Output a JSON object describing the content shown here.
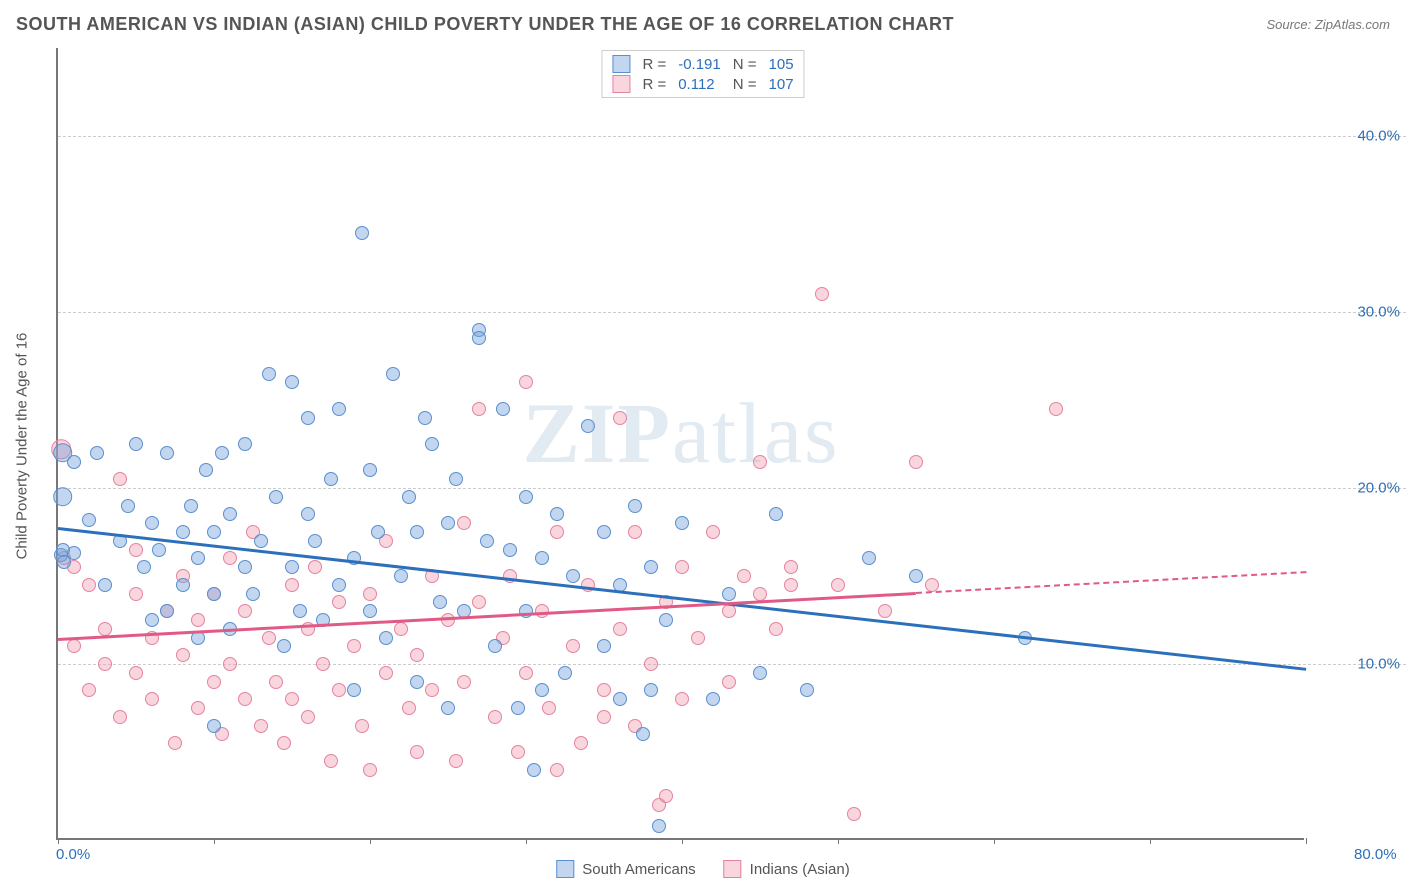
{
  "title": "SOUTH AMERICAN VS INDIAN (ASIAN) CHILD POVERTY UNDER THE AGE OF 16 CORRELATION CHART",
  "source_prefix": "Source: ",
  "source_name": "ZipAtlas.com",
  "watermark_bold": "ZIP",
  "watermark_light": "atlas",
  "yaxis_title": "Child Poverty Under the Age of 16",
  "chart": {
    "type": "scatter",
    "xlim": [
      0,
      80
    ],
    "ylim": [
      0,
      45
    ],
    "x_label_min": "0.0%",
    "x_label_max": "80.0%",
    "x_label_color": "#2c6fbb",
    "x_tick_positions": [
      0,
      10,
      20,
      30,
      40,
      50,
      60,
      70,
      80
    ],
    "y_gridlines": [
      10,
      20,
      30,
      40
    ],
    "y_tick_labels": [
      "10.0%",
      "20.0%",
      "30.0%",
      "40.0%"
    ],
    "y_label_color": "#2c6fbb",
    "grid_color": "#cccccc",
    "axis_color": "#777777",
    "background_color": "#ffffff",
    "marker_radius": 7,
    "marker_radius_big": 12,
    "marker_stroke_width": 1.5,
    "series": [
      {
        "name": "South Americans",
        "fill": "rgba(120,165,220,0.45)",
        "stroke": "#5a8fd0",
        "trend_color": "#2c6fbb",
        "trend_y_at_x0": 17.8,
        "trend_y_at_xmax": 9.8,
        "trend_solid_until_x": 80,
        "R": "-0.191",
        "N": "105",
        "points": [
          [
            0.3,
            22.0,
            1.4
          ],
          [
            0.3,
            19.5,
            1.4
          ],
          [
            0.2,
            16.2,
            1.0
          ],
          [
            0.3,
            16.5,
            1.0
          ],
          [
            1,
            16.3,
            1.0
          ],
          [
            0.4,
            15.8,
            1.0
          ],
          [
            1,
            21.5,
            1.0
          ],
          [
            2,
            18.2,
            1.0
          ],
          [
            2.5,
            22.0,
            1.0
          ],
          [
            3,
            14.5,
            1.0
          ],
          [
            4,
            17.0,
            1.0
          ],
          [
            4.5,
            19.0,
            1.0
          ],
          [
            5,
            22.5,
            1.0
          ],
          [
            5.5,
            15.5,
            1.0
          ],
          [
            6,
            12.5,
            1.0
          ],
          [
            6,
            18.0,
            1.0
          ],
          [
            6.5,
            16.5,
            1.0
          ],
          [
            7,
            22.0,
            1.0
          ],
          [
            7,
            13.0,
            1.0
          ],
          [
            8,
            17.5,
            1.0
          ],
          [
            8,
            14.5,
            1.0
          ],
          [
            8.5,
            19.0,
            1.0
          ],
          [
            9,
            11.5,
            1.0
          ],
          [
            9,
            16.0,
            1.0
          ],
          [
            9.5,
            21.0,
            1.0
          ],
          [
            10,
            14.0,
            1.0
          ],
          [
            10,
            17.5,
            1.0
          ],
          [
            10,
            6.5,
            1.0
          ],
          [
            10.5,
            22.0,
            1.0
          ],
          [
            11,
            12.0,
            1.0
          ],
          [
            11,
            18.5,
            1.0
          ],
          [
            12,
            22.5,
            1.0
          ],
          [
            12,
            15.5,
            1.0
          ],
          [
            12.5,
            14.0,
            1.0
          ],
          [
            13,
            17.0,
            1.0
          ],
          [
            13.5,
            26.5,
            1.0
          ],
          [
            14,
            19.5,
            1.0
          ],
          [
            14.5,
            11.0,
            1.0
          ],
          [
            15,
            15.5,
            1.0
          ],
          [
            15,
            26.0,
            1.0
          ],
          [
            15.5,
            13.0,
            1.0
          ],
          [
            16,
            18.5,
            1.0
          ],
          [
            16,
            24.0,
            1.0
          ],
          [
            16.5,
            17.0,
            1.0
          ],
          [
            17,
            12.5,
            1.0
          ],
          [
            17.5,
            20.5,
            1.0
          ],
          [
            18,
            14.5,
            1.0
          ],
          [
            18,
            24.5,
            1.0
          ],
          [
            19,
            8.5,
            1.0
          ],
          [
            19,
            16.0,
            1.0
          ],
          [
            19.5,
            34.5,
            1.0
          ],
          [
            20,
            13.0,
            1.0
          ],
          [
            20,
            21.0,
            1.0
          ],
          [
            20.5,
            17.5,
            1.0
          ],
          [
            21,
            11.5,
            1.0
          ],
          [
            21.5,
            26.5,
            1.0
          ],
          [
            22,
            15.0,
            1.0
          ],
          [
            22.5,
            19.5,
            1.0
          ],
          [
            23,
            9.0,
            1.0
          ],
          [
            23,
            17.5,
            1.0
          ],
          [
            23.5,
            24.0,
            1.0
          ],
          [
            24,
            22.5,
            1.0
          ],
          [
            24.5,
            13.5,
            1.0
          ],
          [
            25,
            18.0,
            1.0
          ],
          [
            25,
            7.5,
            1.0
          ],
          [
            25.5,
            20.5,
            1.0
          ],
          [
            26,
            13.0,
            1.0
          ],
          [
            27,
            29.0,
            1.0
          ],
          [
            27,
            28.5,
            1.0
          ],
          [
            27.5,
            17.0,
            1.0
          ],
          [
            28,
            11.0,
            1.0
          ],
          [
            28.5,
            24.5,
            1.0
          ],
          [
            29,
            16.5,
            1.0
          ],
          [
            29.5,
            7.5,
            1.0
          ],
          [
            30,
            19.5,
            1.0
          ],
          [
            30,
            13.0,
            1.0
          ],
          [
            30.5,
            4.0,
            1.0
          ],
          [
            31,
            16.0,
            1.0
          ],
          [
            31,
            8.5,
            1.0
          ],
          [
            32,
            18.5,
            1.0
          ],
          [
            32.5,
            9.5,
            1.0
          ],
          [
            33,
            15.0,
            1.0
          ],
          [
            34,
            23.5,
            1.0
          ],
          [
            35,
            11.0,
            1.0
          ],
          [
            35,
            17.5,
            1.0
          ],
          [
            36,
            8.0,
            1.0
          ],
          [
            36,
            14.5,
            1.0
          ],
          [
            37,
            19.0,
            1.0
          ],
          [
            37.5,
            6.0,
            1.0
          ],
          [
            38,
            8.5,
            1.0
          ],
          [
            38,
            15.5,
            1.0
          ],
          [
            38.5,
            0.8,
            1.0
          ],
          [
            39,
            12.5,
            1.0
          ],
          [
            40,
            18.0,
            1.0
          ],
          [
            42,
            8.0,
            1.0
          ],
          [
            43,
            14.0,
            1.0
          ],
          [
            45,
            9.5,
            1.0
          ],
          [
            46,
            18.5,
            1.0
          ],
          [
            48,
            8.5,
            1.0
          ],
          [
            52,
            16.0,
            1.0
          ],
          [
            55,
            15.0,
            1.0
          ],
          [
            62,
            11.5,
            1.0
          ]
        ]
      },
      {
        "name": "Indians (Asian)",
        "fill": "rgba(240,150,170,0.40)",
        "stroke": "#e5839f",
        "trend_color": "#e05a85",
        "trend_y_at_x0": 11.5,
        "trend_y_at_xmax": 15.3,
        "trend_solid_until_x": 55,
        "R": "0.112",
        "N": "107",
        "points": [
          [
            0.2,
            22.2,
            1.4
          ],
          [
            0.4,
            16.0,
            1.0
          ],
          [
            1,
            15.5,
            1.0
          ],
          [
            1,
            11.0,
            1.0
          ],
          [
            2,
            14.5,
            1.0
          ],
          [
            2,
            8.5,
            1.0
          ],
          [
            3,
            12.0,
            1.0
          ],
          [
            3,
            10.0,
            1.0
          ],
          [
            4,
            20.5,
            1.0
          ],
          [
            4,
            7.0,
            1.0
          ],
          [
            5,
            14.0,
            1.0
          ],
          [
            5,
            9.5,
            1.0
          ],
          [
            5,
            16.5,
            1.0
          ],
          [
            6,
            11.5,
            1.0
          ],
          [
            6,
            8.0,
            1.0
          ],
          [
            7,
            13.0,
            1.0
          ],
          [
            7.5,
            5.5,
            1.0
          ],
          [
            8,
            15.0,
            1.0
          ],
          [
            8,
            10.5,
            1.0
          ],
          [
            9,
            7.5,
            1.0
          ],
          [
            9,
            12.5,
            1.0
          ],
          [
            10,
            9.0,
            1.0
          ],
          [
            10,
            14.0,
            1.0
          ],
          [
            10.5,
            6.0,
            1.0
          ],
          [
            11,
            16.0,
            1.0
          ],
          [
            11,
            10.0,
            1.0
          ],
          [
            12,
            8.0,
            1.0
          ],
          [
            12,
            13.0,
            1.0
          ],
          [
            12.5,
            17.5,
            1.0
          ],
          [
            13,
            6.5,
            1.0
          ],
          [
            13.5,
            11.5,
            1.0
          ],
          [
            14,
            9.0,
            1.0
          ],
          [
            14.5,
            5.5,
            1.0
          ],
          [
            15,
            14.5,
            1.0
          ],
          [
            15,
            8.0,
            1.0
          ],
          [
            16,
            12.0,
            1.0
          ],
          [
            16,
            7.0,
            1.0
          ],
          [
            16.5,
            15.5,
            1.0
          ],
          [
            17,
            10.0,
            1.0
          ],
          [
            17.5,
            4.5,
            1.0
          ],
          [
            18,
            13.5,
            1.0
          ],
          [
            18,
            8.5,
            1.0
          ],
          [
            19,
            11.0,
            1.0
          ],
          [
            19.5,
            6.5,
            1.0
          ],
          [
            20,
            14.0,
            1.0
          ],
          [
            20,
            4.0,
            1.0
          ],
          [
            21,
            9.5,
            1.0
          ],
          [
            21,
            17.0,
            1.0
          ],
          [
            22,
            12.0,
            1.0
          ],
          [
            22.5,
            7.5,
            1.0
          ],
          [
            23,
            10.5,
            1.0
          ],
          [
            23,
            5.0,
            1.0
          ],
          [
            24,
            15.0,
            1.0
          ],
          [
            24,
            8.5,
            1.0
          ],
          [
            25,
            12.5,
            1.0
          ],
          [
            25.5,
            4.5,
            1.0
          ],
          [
            26,
            18.0,
            1.0
          ],
          [
            26,
            9.0,
            1.0
          ],
          [
            27,
            24.5,
            1.0
          ],
          [
            27,
            13.5,
            1.0
          ],
          [
            28,
            7.0,
            1.0
          ],
          [
            28.5,
            11.5,
            1.0
          ],
          [
            29,
            15.0,
            1.0
          ],
          [
            29.5,
            5.0,
            1.0
          ],
          [
            30,
            26.0,
            1.0
          ],
          [
            30,
            9.5,
            1.0
          ],
          [
            31,
            13.0,
            1.0
          ],
          [
            31.5,
            7.5,
            1.0
          ],
          [
            32,
            17.5,
            1.0
          ],
          [
            32,
            4.0,
            1.0
          ],
          [
            33,
            11.0,
            1.0
          ],
          [
            33.5,
            5.5,
            1.0
          ],
          [
            34,
            14.5,
            1.0
          ],
          [
            35,
            8.5,
            1.0
          ],
          [
            35,
            7.0,
            1.0
          ],
          [
            36,
            24.0,
            1.0
          ],
          [
            36,
            12.0,
            1.0
          ],
          [
            37,
            6.5,
            1.0
          ],
          [
            37,
            17.5,
            1.0
          ],
          [
            38,
            10.0,
            1.0
          ],
          [
            38.5,
            2.0,
            1.0
          ],
          [
            39,
            2.5,
            1.0
          ],
          [
            39,
            13.5,
            1.0
          ],
          [
            40,
            8.0,
            1.0
          ],
          [
            40,
            15.5,
            1.0
          ],
          [
            41,
            11.5,
            1.0
          ],
          [
            42,
            17.5,
            1.0
          ],
          [
            43,
            9.0,
            1.0
          ],
          [
            43,
            13.0,
            1.0
          ],
          [
            44,
            15.0,
            1.0
          ],
          [
            45,
            21.5,
            1.0
          ],
          [
            45,
            14.0,
            1.0
          ],
          [
            46,
            12.0,
            1.0
          ],
          [
            47,
            15.5,
            1.0
          ],
          [
            47,
            14.5,
            1.0
          ],
          [
            49,
            31.0,
            1.0
          ],
          [
            50,
            14.5,
            1.0
          ],
          [
            51,
            1.5,
            1.0
          ],
          [
            53,
            13.0,
            1.0
          ],
          [
            55,
            21.5,
            1.0
          ],
          [
            56,
            14.5,
            1.0
          ],
          [
            64,
            24.5,
            1.0
          ]
        ]
      }
    ],
    "legend_top_labels": {
      "R": "R =",
      "N": "N ="
    },
    "legend_top_value_color": "#2c6fbb",
    "title_fontsize": 18,
    "label_fontsize": 15
  }
}
